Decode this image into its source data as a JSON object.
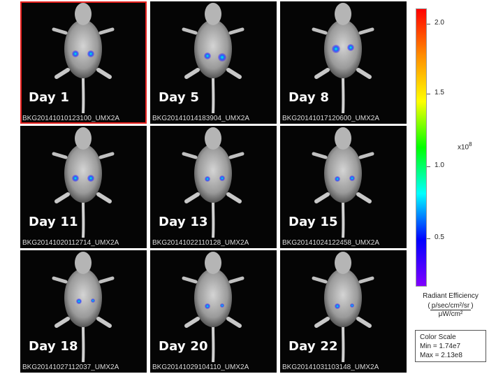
{
  "panels": [
    {
      "day": "Day 1",
      "file": "BKG20141010123100_UMX2A",
      "selected": true
    },
    {
      "day": "Day 5",
      "file": "BKG20141014183904_UMX2A",
      "selected": false
    },
    {
      "day": "Day 8",
      "file": "BKG20141017120600_UMX2A",
      "selected": false
    },
    {
      "day": "Day 11",
      "file": "BKG20141020112714_UMX2A",
      "selected": false
    },
    {
      "day": "Day 13",
      "file": "BKG20141022110128_UMX2A",
      "selected": false
    },
    {
      "day": "Day 15",
      "file": "BKG20141024122458_UMX2A",
      "selected": false
    },
    {
      "day": "Day 18",
      "file": "BKG20141027112037_UMX2A",
      "selected": false
    },
    {
      "day": "Day 20",
      "file": "BKG20141029104110_UMX2A",
      "selected": false
    },
    {
      "day": "Day 22",
      "file": "BKG20141031103148_UMX2A",
      "selected": false
    }
  ],
  "colorbar": {
    "ticks": [
      "2.0",
      "1.5",
      "1.0",
      "0.5"
    ],
    "multiplier_base": "x10",
    "multiplier_exp": "8",
    "title": "Radiant Efficiency",
    "units_numerator": "p/sec/cm²/sr",
    "units_denominator": "μW/cm²",
    "colors": [
      "#ff0000",
      "#ff8c00",
      "#ffff00",
      "#00ff00",
      "#00ffff",
      "#0000ff",
      "#8000ff"
    ]
  },
  "color_scale": {
    "title": "Color Scale",
    "min_label": "Min = 1.74e7",
    "max_label": "Max = 2.13e8"
  }
}
